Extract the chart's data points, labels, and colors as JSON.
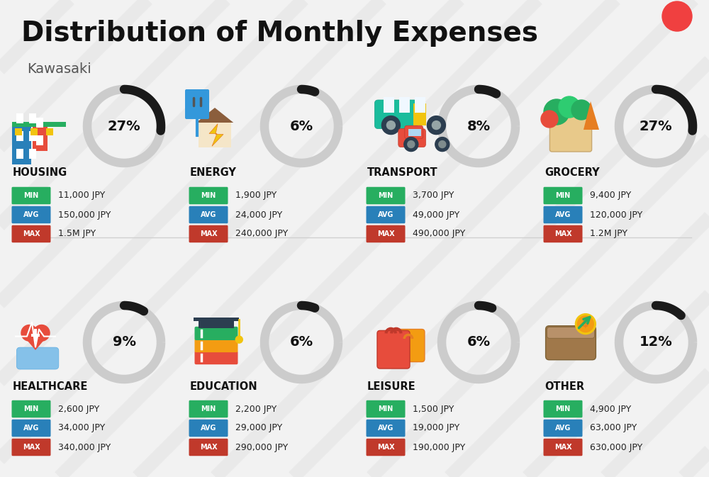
{
  "title": "Distribution of Monthly Expenses",
  "subtitle": "Kawasaki",
  "background_color": "#f2f2f2",
  "title_color": "#111111",
  "subtitle_color": "#555555",
  "categories": [
    {
      "name": "HOUSING",
      "pct": 27,
      "min": "11,000 JPY",
      "avg": "150,000 JPY",
      "max": "1.5M JPY",
      "icon": "housing",
      "col": 0,
      "row": 0
    },
    {
      "name": "ENERGY",
      "pct": 6,
      "min": "1,900 JPY",
      "avg": "24,000 JPY",
      "max": "240,000 JPY",
      "icon": "energy",
      "col": 1,
      "row": 0
    },
    {
      "name": "TRANSPORT",
      "pct": 8,
      "min": "3,700 JPY",
      "avg": "49,000 JPY",
      "max": "490,000 JPY",
      "icon": "transport",
      "col": 2,
      "row": 0
    },
    {
      "name": "GROCERY",
      "pct": 27,
      "min": "9,400 JPY",
      "avg": "120,000 JPY",
      "max": "1.2M JPY",
      "icon": "grocery",
      "col": 3,
      "row": 0
    },
    {
      "name": "HEALTHCARE",
      "pct": 9,
      "min": "2,600 JPY",
      "avg": "34,000 JPY",
      "max": "340,000 JPY",
      "icon": "healthcare",
      "col": 0,
      "row": 1
    },
    {
      "name": "EDUCATION",
      "pct": 6,
      "min": "2,200 JPY",
      "avg": "29,000 JPY",
      "max": "290,000 JPY",
      "icon": "education",
      "col": 1,
      "row": 1
    },
    {
      "name": "LEISURE",
      "pct": 6,
      "min": "1,500 JPY",
      "avg": "19,000 JPY",
      "max": "190,000 JPY",
      "icon": "leisure",
      "col": 2,
      "row": 1
    },
    {
      "name": "OTHER",
      "pct": 12,
      "min": "4,900 JPY",
      "avg": "63,000 JPY",
      "max": "630,000 JPY",
      "icon": "other",
      "col": 3,
      "row": 1
    }
  ],
  "min_color": "#27ae60",
  "avg_color": "#2980b9",
  "max_color": "#c0392b",
  "label_text_color": "#ffffff",
  "value_text_color": "#222222",
  "ring_color_filled": "#1a1a1a",
  "ring_color_empty": "#cccccc",
  "pct_text_color": "#111111",
  "red_dot_color": "#f04040",
  "category_name_color": "#111111",
  "divider_color": "#d0d0d0",
  "stripe_color": "#e0e0e0"
}
